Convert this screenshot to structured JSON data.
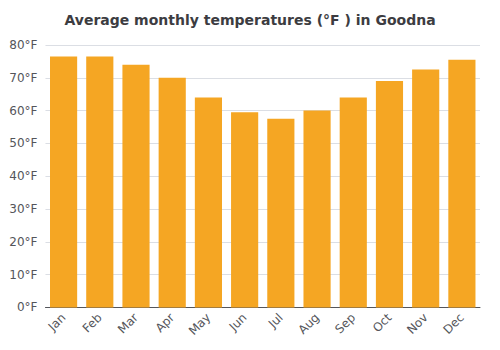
{
  "chart_data": {
    "type": "bar",
    "title": "Average monthly temperatures (°F ) in Goodna",
    "categories": [
      "Jan",
      "Feb",
      "Mar",
      "Apr",
      "May",
      "Jun",
      "Jul",
      "Aug",
      "Sep",
      "Oct",
      "Nov",
      "Dec"
    ],
    "values": [
      76.5,
      76.5,
      74.0,
      70.0,
      64.0,
      59.5,
      57.5,
      60.0,
      64.0,
      69.0,
      72.5,
      75.5
    ],
    "color": "#F5A623",
    "ylim": [
      0,
      80
    ],
    "yticks": [
      {
        "value": 0,
        "label": "0°F"
      },
      {
        "value": 10,
        "label": "10°F"
      },
      {
        "value": 20,
        "label": "20°F"
      },
      {
        "value": 30,
        "label": "30°F"
      },
      {
        "value": 40,
        "label": "40°F"
      },
      {
        "value": 50,
        "label": "50°F"
      },
      {
        "value": 60,
        "label": "60°F"
      },
      {
        "value": 70,
        "label": "70°F"
      },
      {
        "value": 80,
        "label": "80°F"
      }
    ],
    "grid": true
  }
}
